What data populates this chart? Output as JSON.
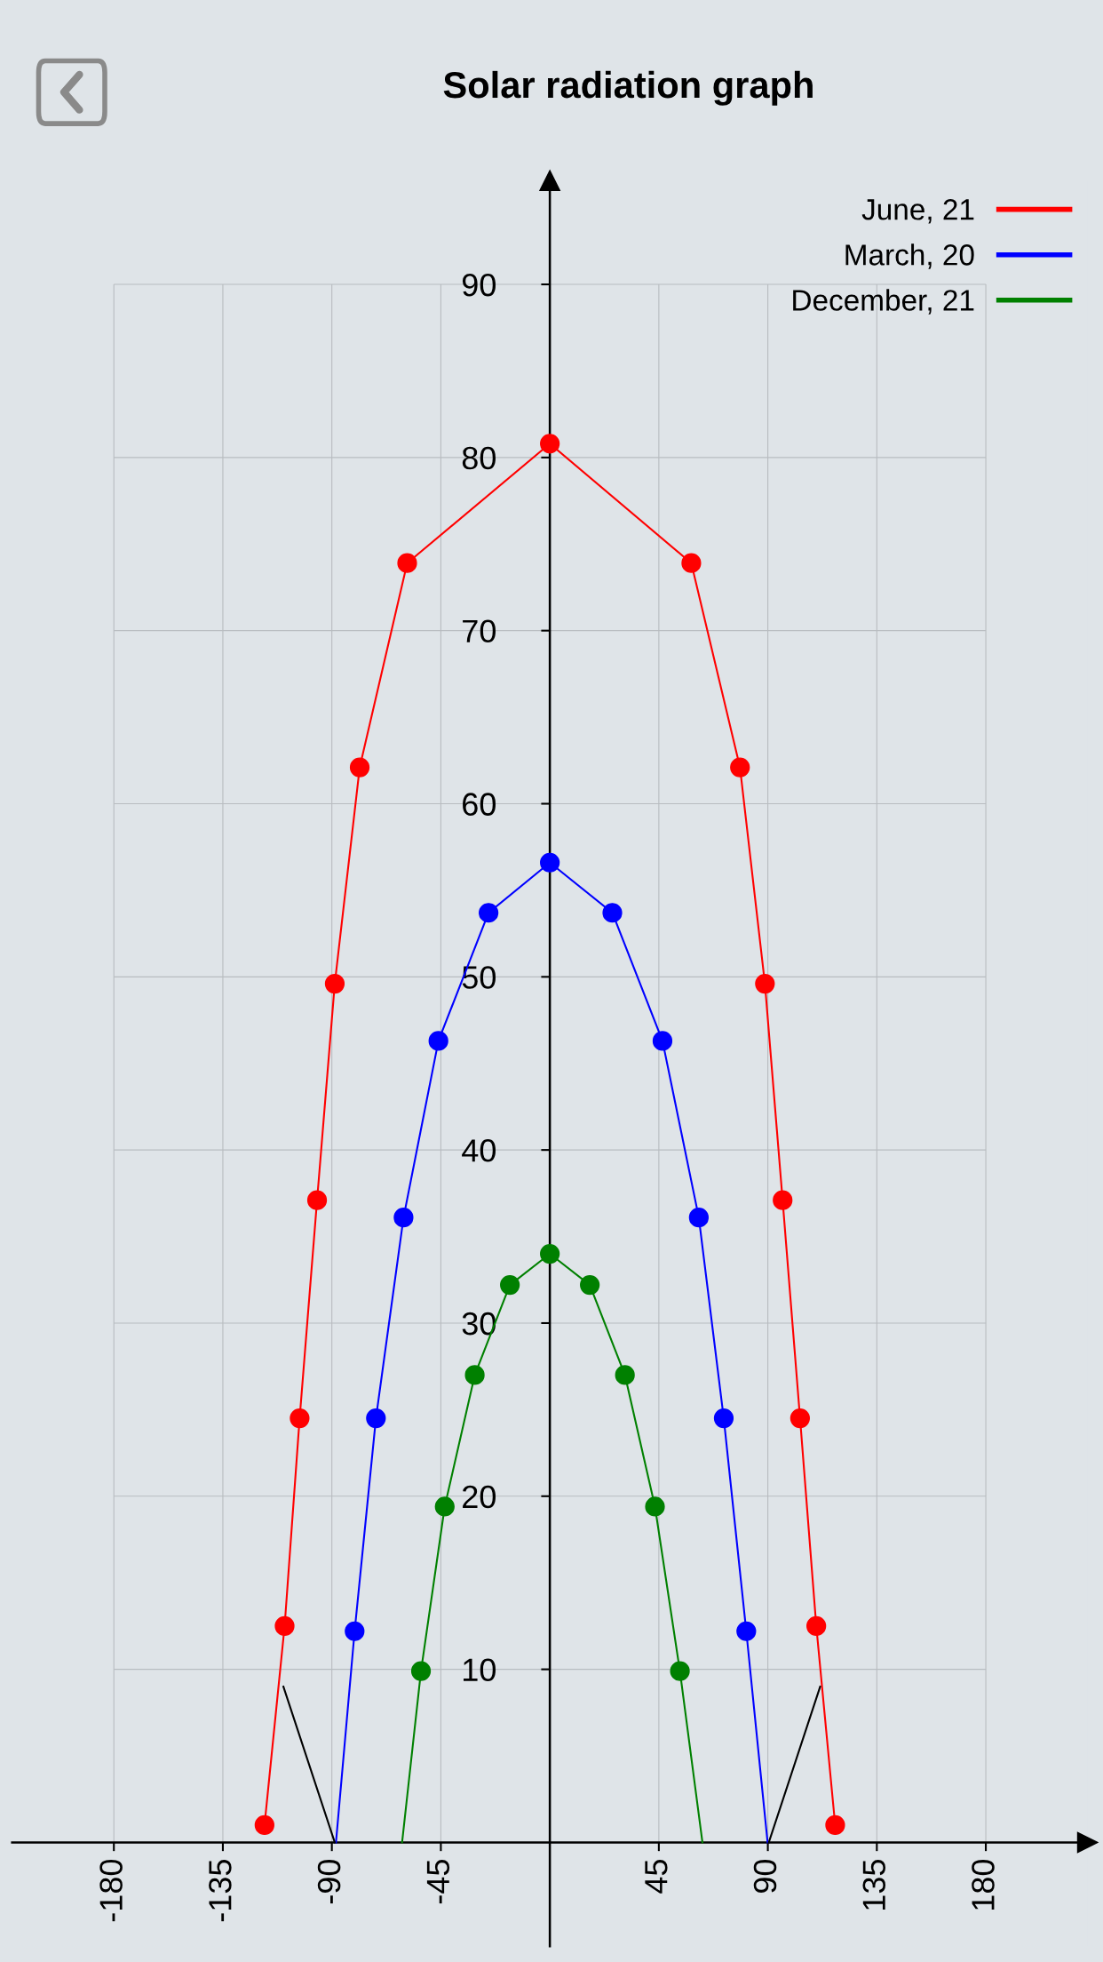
{
  "chart_data": {
    "type": "line",
    "title": "Solar radiation graph",
    "xlim": [
      -222,
      222
    ],
    "ylim": [
      -6,
      96
    ],
    "xticks": [
      -180,
      -135,
      -90,
      -45,
      45,
      90,
      135,
      180
    ],
    "yticks": [
      10,
      20,
      30,
      40,
      50,
      60,
      70,
      80,
      90
    ],
    "grid": true,
    "legend": "top right",
    "marker": "circle",
    "line_style": "solid",
    "series": [
      {
        "name": "June, 21",
        "color": "#ff0000",
        "x": [
          -117.8,
          -109.5,
          -103.3,
          -96.1,
          -88.8,
          -78.5,
          -58.9,
          0,
          58.4,
          78.5,
          88.8,
          96.1,
          103.3,
          110.0,
          117.8
        ],
        "values": [
          1.0,
          12.5,
          24.5,
          37.1,
          49.6,
          62.1,
          73.9,
          80.8,
          73.9,
          62.1,
          49.6,
          37.1,
          24.5,
          12.5,
          1.0
        ]
      },
      {
        "name": "March, 20",
        "color": "#0000ff",
        "x": [
          -80.6,
          -71.8,
          -60.4,
          -46.0,
          -25.3,
          0,
          25.8,
          46.5,
          61.5,
          71.8,
          81.1
        ],
        "values": [
          12.2,
          24.5,
          36.1,
          46.3,
          53.7,
          56.6,
          53.7,
          46.3,
          36.1,
          24.5,
          12.2
        ]
      },
      {
        "name": "December, 21",
        "color": "#008000",
        "x": [
          -53.2,
          -43.4,
          -31.0,
          -16.5,
          0,
          16.5,
          31.0,
          43.4,
          53.7
        ],
        "values": [
          9.9,
          19.4,
          27.0,
          32.2,
          34.0,
          32.2,
          27.0,
          19.4,
          9.9
        ]
      },
      {
        "color": "#0000ff",
        "marker": "none",
        "x": [
          -88.3,
          -80.6,
          0,
          81.1,
          89.9
        ],
        "values": [
          0,
          12.2,
          null,
          12.2,
          0
        ]
      },
      {
        "color": "#008000",
        "marker": "none",
        "x": [
          -61.0,
          -53.2,
          0,
          53.7,
          63.0
        ],
        "values": [
          0,
          9.9,
          null,
          9.9,
          0
        ]
      },
      {
        "color": "#000000",
        "marker": "none",
        "x": [
          -110.0,
          -88.8,
          0,
          90.4,
          111.6
        ],
        "values": [
          9.0,
          0,
          null,
          0,
          9.0
        ]
      }
    ]
  }
}
